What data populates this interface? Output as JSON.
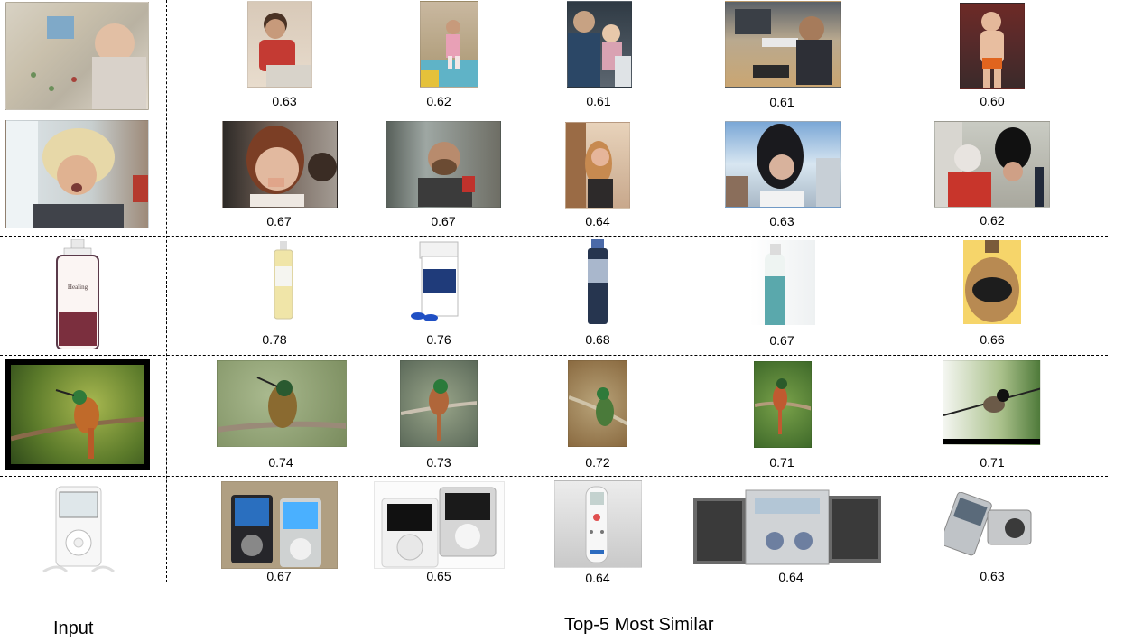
{
  "footer": {
    "input_label": "Input",
    "results_label": "Top-5 Most Similar"
  },
  "rows": [
    {
      "input_image": "child-playing-with-puzzle-photo",
      "results": [
        {
          "score": "0.63",
          "image": "child-in-red-shirt-photo"
        },
        {
          "score": "0.62",
          "image": "toddler-on-play-mat-photo"
        },
        {
          "score": "0.61",
          "image": "woman-and-child-at-computer-photo"
        },
        {
          "score": "0.61",
          "image": "boy-at-desk-with-keyboard-photo"
        },
        {
          "score": "0.60",
          "image": "toddler-in-diaper-photo"
        }
      ]
    },
    {
      "input_image": "man-with-blond-wig-photo",
      "results": [
        {
          "score": "0.67",
          "image": "woman-close-up-photo"
        },
        {
          "score": "0.67",
          "image": "man-with-red-cup-photo"
        },
        {
          "score": "0.64",
          "image": "woman-in-bathroom-photo"
        },
        {
          "score": "0.63",
          "image": "person-with-black-wig-photo"
        },
        {
          "score": "0.62",
          "image": "people-with-bearskin-hat-photo"
        }
      ]
    },
    {
      "input_image": "lotion-bottle-photo",
      "results": [
        {
          "score": "0.78",
          "image": "oil-bottle-photo"
        },
        {
          "score": "0.76",
          "image": "pill-bottle-with-capsules-photo"
        },
        {
          "score": "0.68",
          "image": "spray-can-photo"
        },
        {
          "score": "0.67",
          "image": "decorated-bottle-photo"
        },
        {
          "score": "0.66",
          "image": "whiskey-jug-photo"
        }
      ]
    },
    {
      "input_image": "hummingbird-on-branch-photo",
      "results": [
        {
          "score": "0.74",
          "image": "hummingbird-on-branch-photo"
        },
        {
          "score": "0.73",
          "image": "hummingbird-on-twig-photo"
        },
        {
          "score": "0.72",
          "image": "green-bird-on-branch-photo"
        },
        {
          "score": "0.71",
          "image": "small-bird-on-stem-photo"
        },
        {
          "score": "0.71",
          "image": "bulbul-on-branch-photo"
        }
      ]
    },
    {
      "input_image": "ipod-with-earbuds-photo",
      "results": [
        {
          "score": "0.67",
          "image": "two-ipod-nanos-photo"
        },
        {
          "score": "0.65",
          "image": "two-ipod-classics-photo"
        },
        {
          "score": "0.64",
          "image": "remote-control-photo"
        },
        {
          "score": "0.64",
          "image": "mini-stereo-system-photo"
        },
        {
          "score": "0.63",
          "image": "phone-and-camera-photo"
        }
      ]
    }
  ]
}
